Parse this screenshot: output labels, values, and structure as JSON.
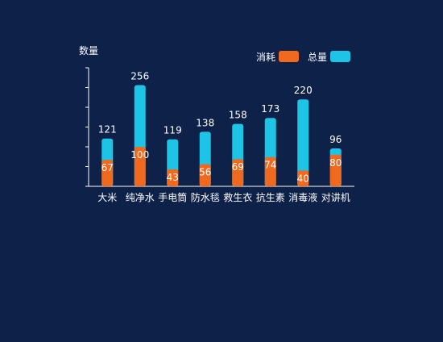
{
  "colors": {
    "background": "#0d2149",
    "axis": "#ffffff",
    "consumption": "#f0691e",
    "total": "#1ec4e6",
    "text": "#ffffff"
  },
  "chart_data": {
    "type": "bar",
    "ylabel": "数量",
    "categories": [
      "大米",
      "纯净水",
      "手电筒",
      "防水毯",
      "救生衣",
      "抗生素",
      "消毒液",
      "对讲机"
    ],
    "series": [
      {
        "name": "消耗",
        "color": "#f0691e",
        "values": [
          67,
          100,
          43,
          56,
          69,
          74,
          40,
          80
        ]
      },
      {
        "name": "总量",
        "color": "#1ec4e6",
        "values": [
          121,
          256,
          119,
          138,
          158,
          173,
          220,
          96
        ]
      }
    ],
    "legend": {
      "position": "top-right",
      "items": [
        "消耗",
        "总量"
      ]
    },
    "ylim": [
      0,
      300
    ],
    "yticks": [
      0,
      50,
      100,
      150,
      200,
      250,
      300
    ],
    "ytick_labels_visible": false,
    "grid": false
  }
}
